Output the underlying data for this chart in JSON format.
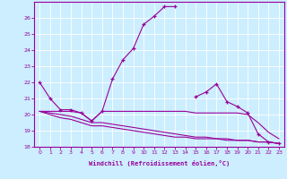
{
  "xlabel": "Windchill (Refroidissement éolien,°C)",
  "x": [
    0,
    1,
    2,
    3,
    4,
    5,
    6,
    7,
    8,
    9,
    10,
    11,
    12,
    13,
    14,
    15,
    16,
    17,
    18,
    19,
    20,
    21,
    22,
    23
  ],
  "line1_seg1": {
    "x": [
      0,
      1,
      2,
      3,
      4,
      5,
      6,
      7,
      8,
      9,
      10,
      11,
      12,
      13
    ],
    "y": [
      22.0,
      21.0,
      20.3,
      20.3,
      20.1,
      19.6,
      20.2,
      22.2,
      23.4,
      24.1,
      25.6,
      26.1,
      26.7,
      26.7
    ]
  },
  "line1_seg2": {
    "x": [
      15,
      16,
      17,
      18,
      19,
      20,
      21,
      22,
      23
    ],
    "y": [
      21.1,
      21.4,
      21.9,
      20.8,
      20.5,
      20.1,
      18.8,
      18.3,
      18.2
    ]
  },
  "line2": [
    20.2,
    20.2,
    20.2,
    20.2,
    20.1,
    19.6,
    20.2,
    20.2,
    20.2,
    20.2,
    20.2,
    20.2,
    20.2,
    20.2,
    20.2,
    20.1,
    20.1,
    20.1,
    20.1,
    20.1,
    20.0,
    19.5,
    18.9,
    18.5
  ],
  "line3": [
    20.2,
    20.0,
    19.8,
    19.7,
    19.5,
    19.3,
    19.3,
    19.2,
    19.1,
    19.0,
    18.9,
    18.8,
    18.7,
    18.6,
    18.6,
    18.5,
    18.5,
    18.5,
    18.4,
    18.4,
    18.4,
    18.3,
    18.3,
    18.2
  ],
  "line4": [
    20.2,
    20.1,
    20.0,
    19.9,
    19.7,
    19.5,
    19.5,
    19.4,
    19.3,
    19.2,
    19.1,
    19.0,
    18.9,
    18.8,
    18.7,
    18.6,
    18.6,
    18.5,
    18.5,
    18.4,
    18.4,
    18.3,
    18.3,
    18.2
  ],
  "color": "#990099",
  "bg_color": "#cceeff",
  "grid_color": "#ffffff",
  "ylim": [
    18,
    27
  ],
  "yticks": [
    18,
    19,
    20,
    21,
    22,
    23,
    24,
    25,
    26
  ],
  "xticks": [
    0,
    1,
    2,
    3,
    4,
    5,
    6,
    7,
    8,
    9,
    10,
    11,
    12,
    13,
    14,
    15,
    16,
    17,
    18,
    19,
    20,
    21,
    22,
    23
  ]
}
